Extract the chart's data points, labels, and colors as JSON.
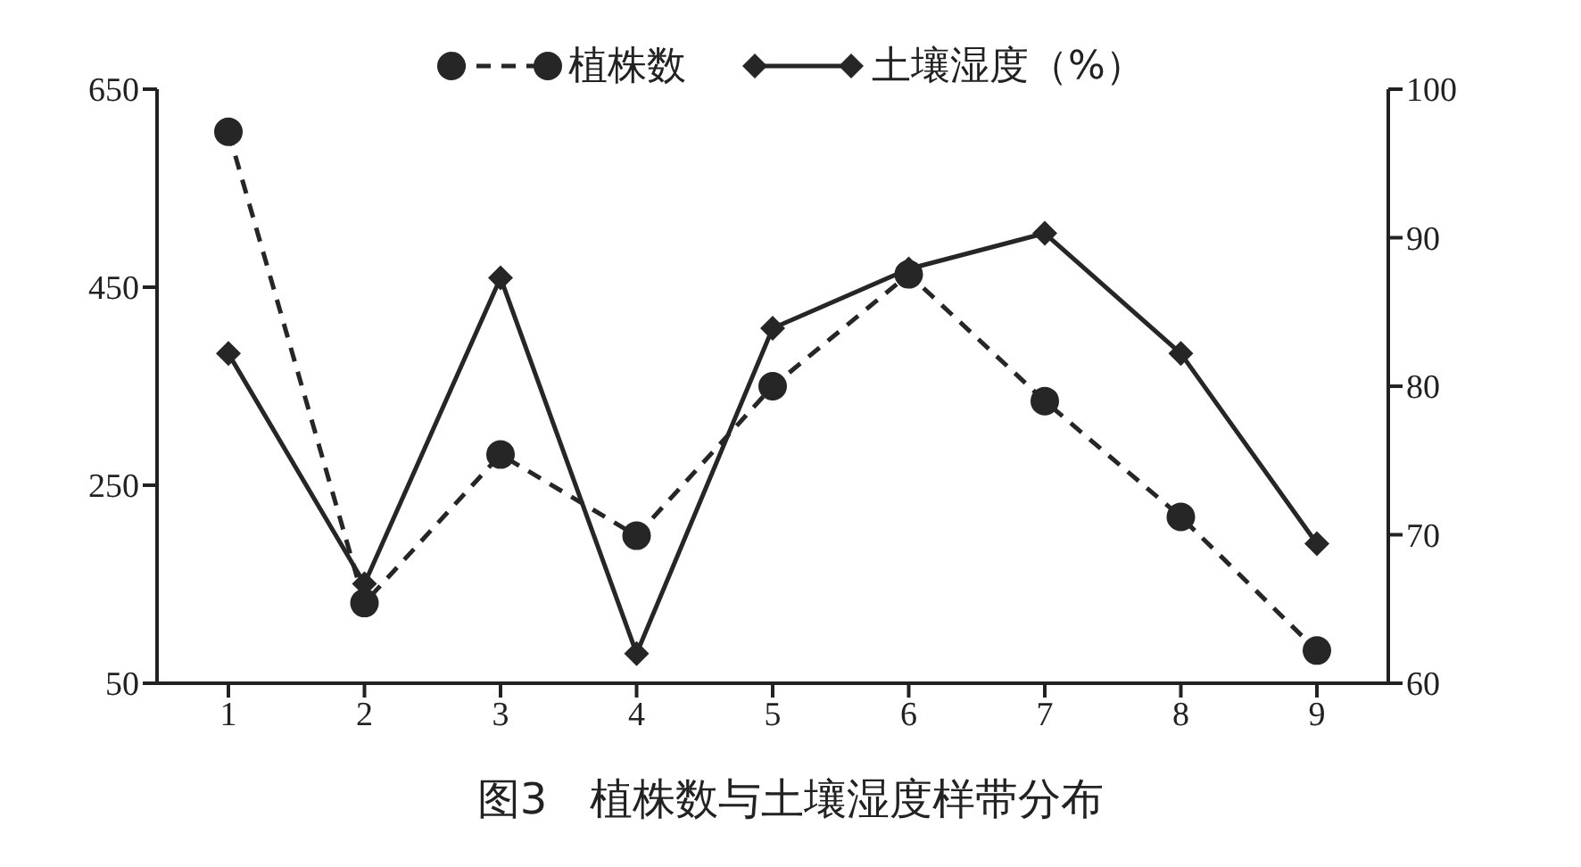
{
  "chart_data": {
    "type": "line",
    "title": "图3　植株数与土壤湿度样带分布",
    "categories": [
      "1",
      "2",
      "3",
      "4",
      "5",
      "6",
      "7",
      "8",
      "9"
    ],
    "series": [
      {
        "name": "植株数",
        "color": "#262626",
        "marker": "circle",
        "line_style": "dashed",
        "values": [
          607,
          131,
          281,
          199,
          350,
          463,
          335,
          218,
          83
        ]
      },
      {
        "name": "土壤湿度（%）",
        "color": "#262626",
        "marker": "diamond",
        "line_style": "solid",
        "axis": "y2",
        "values": [
          82.2,
          66.7,
          87.3,
          62.0,
          83.9,
          87.9,
          90.3,
          82.2,
          69.4
        ]
      }
    ],
    "ylim": [
      50,
      650
    ],
    "yticks": [
      50,
      250,
      450,
      650
    ],
    "y2lim": [
      60,
      100
    ],
    "y2ticks": [
      60,
      70,
      80,
      90,
      100
    ],
    "grid": false,
    "legend": "top"
  }
}
